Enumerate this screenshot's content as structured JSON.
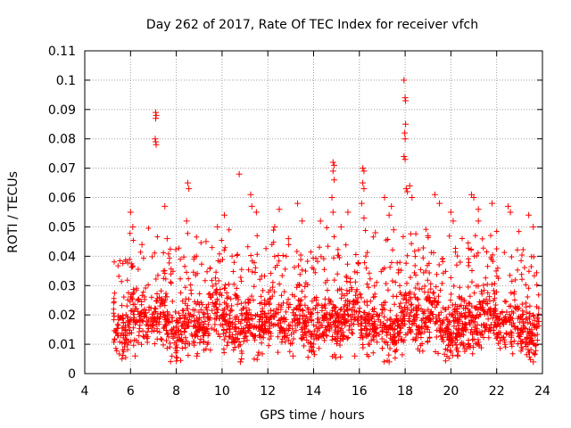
{
  "chart_data": {
    "type": "scatter",
    "title": "Day 262 of 2017, Rate Of TEC Index for receiver vfch",
    "xlabel": "GPS time / hours",
    "ylabel": "ROTI / TECUs",
    "xlim": [
      4,
      24
    ],
    "ylim": [
      0,
      0.11
    ],
    "xticks": [
      4,
      6,
      8,
      10,
      12,
      14,
      16,
      18,
      20,
      22,
      24
    ],
    "yticks": [
      0,
      0.01,
      0.02,
      0.03,
      0.04,
      0.05,
      0.06,
      0.07,
      0.08,
      0.09,
      0.1,
      0.11
    ],
    "grid": true,
    "marker": "+",
    "series_color": "#ff0000",
    "data_range_x": [
      5.25,
      23.85
    ],
    "dense_band": {
      "y_low": 0.008,
      "y_high": 0.028,
      "typical_upper": 0.035,
      "typical_lower": 0.004
    },
    "spike_points": [
      {
        "x": 7.1,
        "y": 0.089
      },
      {
        "x": 7.12,
        "y": 0.088
      },
      {
        "x": 7.1,
        "y": 0.087
      },
      {
        "x": 7.08,
        "y": 0.08
      },
      {
        "x": 7.1,
        "y": 0.079
      },
      {
        "x": 7.12,
        "y": 0.078
      },
      {
        "x": 17.95,
        "y": 0.1
      },
      {
        "x": 18.0,
        "y": 0.094
      },
      {
        "x": 18.02,
        "y": 0.093
      },
      {
        "x": 18.02,
        "y": 0.085
      },
      {
        "x": 17.98,
        "y": 0.082
      },
      {
        "x": 18.0,
        "y": 0.08
      },
      {
        "x": 17.95,
        "y": 0.074
      },
      {
        "x": 18.0,
        "y": 0.073
      },
      {
        "x": 18.05,
        "y": 0.063
      },
      {
        "x": 18.2,
        "y": 0.064
      },
      {
        "x": 18.1,
        "y": 0.062
      },
      {
        "x": 18.3,
        "y": 0.06
      },
      {
        "x": 14.85,
        "y": 0.072
      },
      {
        "x": 14.9,
        "y": 0.071
      },
      {
        "x": 14.85,
        "y": 0.069
      },
      {
        "x": 14.9,
        "y": 0.066
      },
      {
        "x": 14.8,
        "y": 0.06
      },
      {
        "x": 14.85,
        "y": 0.055
      },
      {
        "x": 16.15,
        "y": 0.07
      },
      {
        "x": 16.2,
        "y": 0.069
      },
      {
        "x": 16.15,
        "y": 0.065
      },
      {
        "x": 16.2,
        "y": 0.063
      },
      {
        "x": 16.1,
        "y": 0.058
      },
      {
        "x": 16.2,
        "y": 0.053
      },
      {
        "x": 10.75,
        "y": 0.068
      },
      {
        "x": 8.5,
        "y": 0.065
      },
      {
        "x": 8.55,
        "y": 0.063
      },
      {
        "x": 8.45,
        "y": 0.052
      },
      {
        "x": 6.0,
        "y": 0.055
      },
      {
        "x": 6.1,
        "y": 0.05
      },
      {
        "x": 7.5,
        "y": 0.057
      },
      {
        "x": 7.6,
        "y": 0.046
      },
      {
        "x": 11.25,
        "y": 0.061
      },
      {
        "x": 11.3,
        "y": 0.057
      },
      {
        "x": 11.5,
        "y": 0.055
      },
      {
        "x": 13.3,
        "y": 0.058
      },
      {
        "x": 13.5,
        "y": 0.052
      },
      {
        "x": 12.5,
        "y": 0.056
      },
      {
        "x": 12.3,
        "y": 0.05
      },
      {
        "x": 17.1,
        "y": 0.06
      },
      {
        "x": 17.4,
        "y": 0.057
      },
      {
        "x": 17.3,
        "y": 0.054
      },
      {
        "x": 17.5,
        "y": 0.049
      },
      {
        "x": 19.3,
        "y": 0.061
      },
      {
        "x": 19.5,
        "y": 0.058
      },
      {
        "x": 20.0,
        "y": 0.055
      },
      {
        "x": 20.1,
        "y": 0.052
      },
      {
        "x": 20.9,
        "y": 0.061
      },
      {
        "x": 21.0,
        "y": 0.06
      },
      {
        "x": 21.2,
        "y": 0.056
      },
      {
        "x": 21.8,
        "y": 0.058
      },
      {
        "x": 21.2,
        "y": 0.052
      },
      {
        "x": 22.5,
        "y": 0.057
      },
      {
        "x": 22.6,
        "y": 0.055
      },
      {
        "x": 23.4,
        "y": 0.054
      },
      {
        "x": 23.6,
        "y": 0.05
      },
      {
        "x": 10.1,
        "y": 0.054
      },
      {
        "x": 9.8,
        "y": 0.05
      },
      {
        "x": 15.5,
        "y": 0.055
      },
      {
        "x": 15.2,
        "y": 0.05
      },
      {
        "x": 14.3,
        "y": 0.052
      },
      {
        "x": 9.3,
        "y": 0.045
      },
      {
        "x": 16.7,
        "y": 0.048
      },
      {
        "x": 19.0,
        "y": 0.047
      },
      {
        "x": 6.5,
        "y": 0.044
      },
      {
        "x": 12.9,
        "y": 0.046
      },
      {
        "x": 10.8,
        "y": 0.004
      },
      {
        "x": 10.85,
        "y": 0.005
      },
      {
        "x": 23.6,
        "y": 0.004
      },
      {
        "x": 17.3,
        "y": 0.004
      },
      {
        "x": 6.2,
        "y": 0.006
      },
      {
        "x": 13.1,
        "y": 0.006
      },
      {
        "x": 15.8,
        "y": 0.006
      },
      {
        "x": 20.3,
        "y": 0.006
      },
      {
        "x": 8.9,
        "y": 0.006
      }
    ]
  }
}
